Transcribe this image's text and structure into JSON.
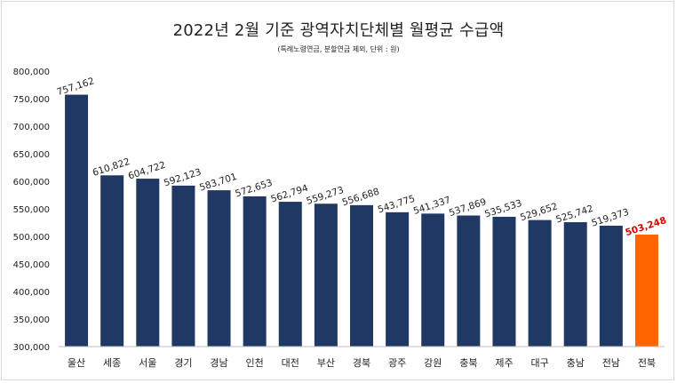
{
  "chart_data": {
    "type": "bar",
    "title": "2022년 2월 기준 광역자치단체별 월평균 수급액",
    "subtitle": "(특례노령연금, 분할연금 제외, 단위 : 원)",
    "xlabel": "",
    "ylabel": "",
    "ylim": [
      300000,
      800000
    ],
    "ytick_step": 50000,
    "grid": false,
    "legend": "none",
    "categories": [
      "울산",
      "세종",
      "서울",
      "경기",
      "경남",
      "인천",
      "대전",
      "부산",
      "경북",
      "광주",
      "강원",
      "충북",
      "제주",
      "대구",
      "충남",
      "전남",
      "전북"
    ],
    "values": [
      757162,
      610822,
      604722,
      592123,
      583701,
      572653,
      562794,
      559273,
      556688,
      543775,
      541337,
      537869,
      535533,
      529652,
      525742,
      519373,
      503248
    ],
    "value_labels": [
      "757,162",
      "610,822",
      "604,722",
      "592,123",
      "583,701",
      "572,653",
      "562,794",
      "559,273",
      "556,688",
      "543,775",
      "541,337",
      "537,869",
      "535,533",
      "529,652",
      "525,742",
      "519,373",
      "503,248"
    ],
    "ytick_labels": [
      "300,000",
      "350,000",
      "400,000",
      "450,000",
      "500,000",
      "550,000",
      "600,000",
      "650,000",
      "700,000",
      "750,000",
      "800,000"
    ],
    "highlight_index": 16,
    "colors": {
      "bar": "#1f3864",
      "highlight_bar": "#ff6600",
      "highlight_label": "#e00000",
      "text": "#222222",
      "axis": "#bfbfbf"
    }
  }
}
